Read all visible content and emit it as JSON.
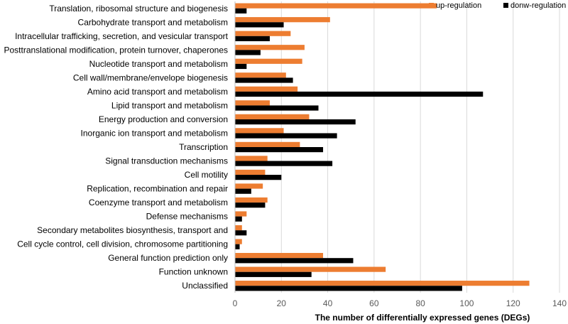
{
  "chart_data": {
    "type": "bar",
    "orientation": "horizontal",
    "title": "",
    "xlabel": "The number of differentially expressed genes (DEGs)",
    "ylabel": "",
    "xlim": [
      0,
      140
    ],
    "xticks": [
      0,
      20,
      40,
      60,
      80,
      100,
      120,
      140
    ],
    "grid": true,
    "legend_position": "top-right",
    "categories": [
      "Translation, ribosomal structure and biogenesis",
      "Carbohydrate transport and metabolism",
      "Intracellular trafficking, secretion, and vesicular transport",
      "Posttranslational modification, protein turnover, chaperones",
      "Nucleotide transport and metabolism",
      "Cell wall/membrane/envelope biogenesis",
      "Amino acid transport and metabolism",
      "Lipid transport and metabolism",
      "Energy production and conversion",
      "Inorganic ion transport and metabolism",
      "Transcription",
      "Signal transduction mechanisms",
      "Cell motility",
      "Replication, recombination and repair",
      "Coenzyme transport and metabolism",
      "Defense mechanisms",
      "Secondary metabolites biosynthesis, transport and",
      "Cell cycle control, cell division, chromosome partitioning",
      "General function prediction only",
      "Function unknown",
      "Unclassified"
    ],
    "series": [
      {
        "name": "up-regulation",
        "color": "#ed7d31",
        "values": [
          87,
          41,
          24,
          30,
          29,
          22,
          27,
          15,
          32,
          21,
          28,
          14,
          13,
          12,
          14,
          5,
          3,
          3,
          38,
          65,
          127
        ]
      },
      {
        "name": "donw-regulation",
        "color": "#000000",
        "values": [
          5,
          21,
          15,
          11,
          5,
          25,
          107,
          36,
          52,
          44,
          38,
          42,
          20,
          7,
          13,
          3,
          5,
          2,
          51,
          33,
          98
        ]
      }
    ]
  }
}
